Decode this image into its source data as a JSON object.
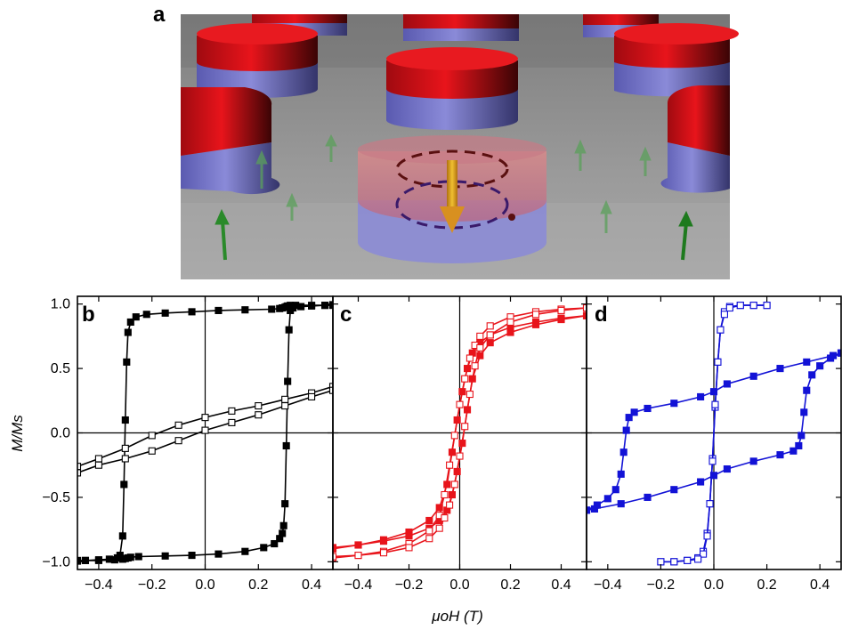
{
  "figure": {
    "panel_a_label": "a",
    "panel_b_label": "b",
    "panel_c_label": "c",
    "panel_d_label": "d",
    "ylabel": "M/Ms",
    "xlabel": "μoH (T)"
  },
  "colors": {
    "panel_b": "#000000",
    "panel_c": "#e8141b",
    "panel_d": "#1212d6",
    "disk_top": "#d8141b",
    "disk_bottom": "#6a6ac8",
    "substrate": "#909090",
    "arrow_green": "#2a8a2a",
    "arrow_yellow": "#e0b020"
  },
  "chart_data": [
    {
      "panel": "b",
      "type": "line",
      "xlabel": "μoH (T)",
      "ylabel": "M/Ms",
      "xlim": [
        -0.48,
        0.48
      ],
      "ylim": [
        -1.06,
        1.06
      ],
      "xticks": [
        -0.4,
        -0.2,
        0.0,
        0.2,
        0.4
      ],
      "xtick_labels": [
        "−0.4",
        "−0.2",
        "0.0",
        "0.2",
        "0.4"
      ],
      "yticks": [
        -1.0,
        -0.5,
        0.0,
        0.5,
        1.0
      ],
      "ytick_labels": [
        "−1.0",
        "−0.5",
        "0.0",
        "0.5",
        "1.0"
      ],
      "zero_lines": true,
      "series": [
        {
          "marker": "filled-square",
          "x": [
            -0.48,
            -0.45,
            -0.4,
            -0.36,
            -0.33,
            -0.32,
            -0.31,
            -0.305,
            -0.3,
            -0.295,
            -0.29,
            -0.28,
            -0.26,
            -0.22,
            -0.15,
            -0.05,
            0.05,
            0.15,
            0.25,
            0.28,
            0.29,
            0.3,
            0.305,
            0.31,
            0.32,
            0.34,
            0.4,
            0.45,
            0.48
          ],
          "y": [
            -0.995,
            -0.99,
            -0.985,
            -0.98,
            -0.97,
            -0.95,
            -0.8,
            -0.4,
            0.1,
            0.55,
            0.78,
            0.86,
            0.9,
            0.92,
            0.93,
            0.94,
            0.95,
            0.955,
            0.96,
            0.965,
            0.97,
            0.975,
            0.98,
            0.985,
            0.99,
            0.99,
            0.99,
            0.99,
            0.99
          ]
        },
        {
          "marker": "filled-square",
          "x": [
            0.48,
            0.45,
            0.4,
            0.36,
            0.33,
            0.32,
            0.315,
            0.31,
            0.305,
            0.3,
            0.295,
            0.29,
            0.28,
            0.26,
            0.22,
            0.15,
            0.05,
            -0.05,
            -0.15,
            -0.25,
            -0.28,
            -0.29,
            -0.3,
            -0.31,
            -0.34,
            -0.4,
            -0.45,
            -0.48
          ],
          "y": [
            0.995,
            0.99,
            0.985,
            0.98,
            0.97,
            0.95,
            0.8,
            0.4,
            -0.1,
            -0.55,
            -0.72,
            -0.78,
            -0.82,
            -0.86,
            -0.89,
            -0.92,
            -0.94,
            -0.95,
            -0.955,
            -0.96,
            -0.965,
            -0.97,
            -0.975,
            -0.98,
            -0.985,
            -0.99,
            -0.99,
            -0.99
          ]
        },
        {
          "marker": "open-square",
          "x": [
            -0.48,
            -0.4,
            -0.3,
            -0.2,
            -0.1,
            0.0,
            0.1,
            0.2,
            0.3,
            0.4,
            0.48
          ],
          "y": [
            -0.26,
            -0.2,
            -0.12,
            -0.02,
            0.06,
            0.12,
            0.17,
            0.21,
            0.26,
            0.31,
            0.36
          ]
        },
        {
          "marker": "open-square",
          "x": [
            0.48,
            0.4,
            0.3,
            0.2,
            0.1,
            0.0,
            -0.1,
            -0.2,
            -0.3,
            -0.4,
            -0.48
          ],
          "y": [
            0.33,
            0.28,
            0.21,
            0.14,
            0.08,
            0.02,
            -0.06,
            -0.14,
            -0.2,
            -0.25,
            -0.31
          ]
        }
      ]
    },
    {
      "panel": "c",
      "type": "line",
      "xlabel": "μoH (T)",
      "xlim": [
        -0.5,
        0.5
      ],
      "ylim": [
        -1.06,
        1.06
      ],
      "xticks": [
        -0.4,
        -0.2,
        0.0,
        0.2,
        0.4
      ],
      "xtick_labels": [
        "−0.4",
        "−0.2",
        "0.0",
        "0.2",
        "0.4"
      ],
      "zero_lines": true,
      "series": [
        {
          "marker": "filled-square",
          "x": [
            -0.5,
            -0.4,
            -0.3,
            -0.2,
            -0.12,
            -0.08,
            -0.05,
            -0.03,
            -0.01,
            0.01,
            0.03,
            0.05,
            0.08,
            0.12,
            0.2,
            0.3,
            0.4,
            0.5
          ],
          "y": [
            -0.9,
            -0.87,
            -0.83,
            -0.77,
            -0.68,
            -0.58,
            -0.4,
            -0.15,
            0.1,
            0.32,
            0.5,
            0.62,
            0.7,
            0.76,
            0.82,
            0.86,
            0.89,
            0.91
          ]
        },
        {
          "marker": "filled-square",
          "x": [
            0.5,
            0.4,
            0.3,
            0.2,
            0.12,
            0.08,
            0.05,
            0.03,
            0.01,
            -0.01,
            -0.03,
            -0.05,
            -0.08,
            -0.12,
            -0.2,
            -0.3,
            -0.4,
            -0.5
          ],
          "y": [
            0.91,
            0.88,
            0.84,
            0.78,
            0.7,
            0.6,
            0.42,
            0.18,
            -0.08,
            -0.3,
            -0.48,
            -0.6,
            -0.68,
            -0.74,
            -0.8,
            -0.84,
            -0.87,
            -0.89
          ]
        },
        {
          "marker": "open-square",
          "x": [
            -0.5,
            -0.4,
            -0.3,
            -0.2,
            -0.12,
            -0.08,
            -0.06,
            -0.04,
            -0.02,
            0.0,
            0.02,
            0.04,
            0.06,
            0.08,
            0.12,
            0.2,
            0.3,
            0.4,
            0.5
          ],
          "y": [
            -0.97,
            -0.95,
            -0.92,
            -0.86,
            -0.76,
            -0.64,
            -0.48,
            -0.25,
            -0.02,
            0.22,
            0.42,
            0.58,
            0.68,
            0.75,
            0.83,
            0.9,
            0.94,
            0.96,
            0.97
          ]
        },
        {
          "marker": "open-square",
          "x": [
            0.5,
            0.4,
            0.3,
            0.2,
            0.12,
            0.08,
            0.06,
            0.04,
            0.02,
            0.0,
            -0.02,
            -0.04,
            -0.06,
            -0.08,
            -0.12,
            -0.2,
            -0.3,
            -0.4,
            -0.5
          ],
          "y": [
            0.97,
            0.95,
            0.92,
            0.86,
            0.76,
            0.66,
            0.52,
            0.3,
            0.05,
            -0.18,
            -0.4,
            -0.56,
            -0.66,
            -0.74,
            -0.82,
            -0.89,
            -0.93,
            -0.95,
            -0.96
          ]
        }
      ]
    },
    {
      "panel": "d",
      "type": "line",
      "xlabel": "μoH (T)",
      "xlim": [
        -0.48,
        0.48
      ],
      "ylim": [
        -1.06,
        1.06
      ],
      "xticks": [
        -0.4,
        -0.2,
        0.0,
        0.2,
        0.4
      ],
      "xtick_labels": [
        "−0.4",
        "−0.2",
        "0.0",
        "0.2",
        "0.4"
      ],
      "zero_lines": true,
      "series": [
        {
          "marker": "filled-square",
          "x": [
            -0.48,
            -0.44,
            -0.4,
            -0.37,
            -0.35,
            -0.34,
            -0.33,
            -0.32,
            -0.3,
            -0.25,
            -0.15,
            -0.05,
            0.0,
            0.05,
            0.15,
            0.25,
            0.35,
            0.45,
            0.48
          ],
          "y": [
            -0.6,
            -0.56,
            -0.51,
            -0.44,
            -0.32,
            -0.15,
            0.02,
            0.12,
            0.16,
            0.19,
            0.23,
            0.28,
            0.32,
            0.38,
            0.44,
            0.5,
            0.55,
            0.6,
            0.62
          ]
        },
        {
          "marker": "filled-square",
          "x": [
            0.48,
            0.44,
            0.4,
            0.37,
            0.35,
            0.34,
            0.33,
            0.32,
            0.3,
            0.25,
            0.15,
            0.05,
            0.0,
            -0.05,
            -0.15,
            -0.25,
            -0.35,
            -0.45,
            -0.48
          ],
          "y": [
            0.62,
            0.58,
            0.52,
            0.45,
            0.33,
            0.16,
            -0.02,
            -0.1,
            -0.14,
            -0.17,
            -0.22,
            -0.28,
            -0.33,
            -0.38,
            -0.44,
            -0.5,
            -0.55,
            -0.59,
            -0.6
          ]
        },
        {
          "marker": "open-square",
          "x": [
            -0.2,
            -0.15,
            -0.1,
            -0.06,
            -0.04,
            -0.025,
            -0.015,
            -0.005,
            0.005,
            0.015,
            0.025,
            0.04,
            0.06,
            0.1,
            0.15,
            0.2
          ],
          "y": [
            -1.0,
            -1.0,
            -0.99,
            -0.97,
            -0.92,
            -0.78,
            -0.55,
            -0.2,
            0.2,
            0.55,
            0.8,
            0.94,
            0.98,
            0.99,
            0.99,
            0.99
          ]
        },
        {
          "marker": "open-square",
          "x": [
            0.2,
            0.15,
            0.1,
            0.06,
            0.04,
            0.025,
            0.015,
            0.005,
            -0.005,
            -0.015,
            -0.025,
            -0.04,
            -0.06,
            -0.1,
            -0.15,
            -0.2
          ],
          "y": [
            0.99,
            0.99,
            0.99,
            0.97,
            0.92,
            0.8,
            0.55,
            0.22,
            -0.22,
            -0.55,
            -0.8,
            -0.94,
            -0.98,
            -0.99,
            -1.0,
            -1.0
          ]
        }
      ]
    }
  ]
}
